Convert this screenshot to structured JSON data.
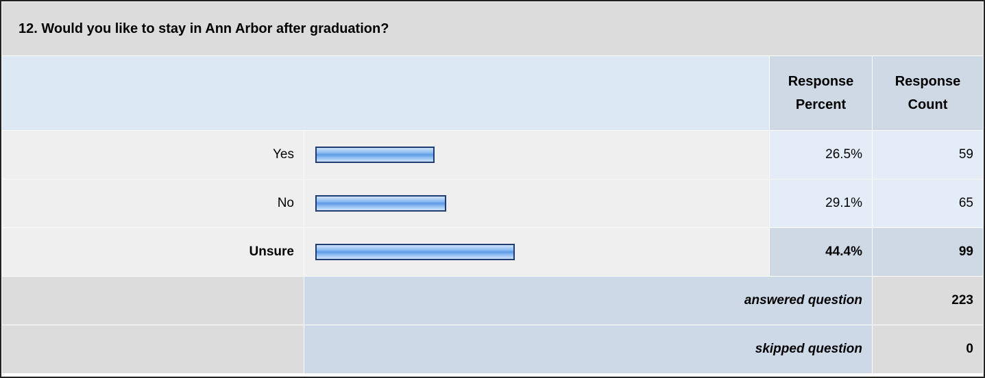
{
  "question": "12. Would you like to stay in Ann Arbor after graduation?",
  "headers": {
    "percent": "Response Percent",
    "count": "Response Count"
  },
  "rows": [
    {
      "label": "Yes",
      "percent": {
        "value": 26.5,
        "label": "26.5%"
      },
      "count": 59
    },
    {
      "label": "No",
      "percent": {
        "value": 29.1,
        "label": "29.1%"
      },
      "count": 65
    },
    {
      "label": "Unsure",
      "percent": {
        "value": 44.4,
        "label": "44.4%"
      },
      "count": 99
    }
  ],
  "answered": {
    "label": "answered question",
    "count": 223
  },
  "skipped": {
    "label": "skipped question",
    "count": 0
  }
}
